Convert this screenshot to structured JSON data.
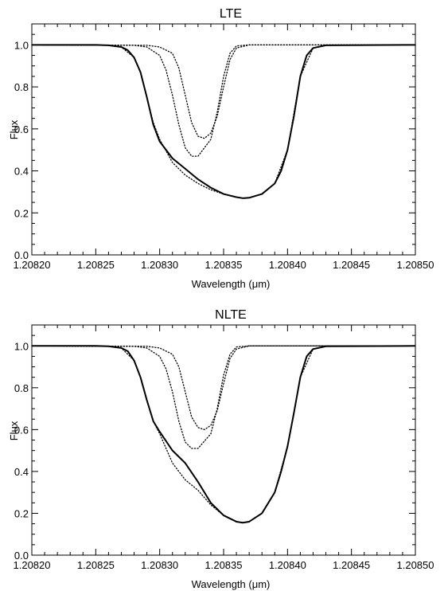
{
  "chart_data": [
    {
      "type": "line",
      "title": "LTE",
      "xlabel": "Wavelength (μm)",
      "ylabel": "Flux",
      "xlim": [
        1.2082,
        1.2085
      ],
      "ylim": [
        0.0,
        1.1
      ],
      "x_ticks": [
        "1.20820",
        "1.20825",
        "1.20830",
        "1.20835",
        "1.20840",
        "1.20845",
        "1.20850"
      ],
      "y_ticks": [
        "0.0",
        "0.2",
        "0.4",
        "0.6",
        "0.8",
        "1.0"
      ],
      "grid": false,
      "series": [
        {
          "style": "solid",
          "x": [
            1.2082,
            1.20825,
            1.20826,
            1.20827,
            1.208275,
            1.20828,
            1.208285,
            1.20829,
            1.208295,
            1.2083,
            1.20831,
            1.20832,
            1.20833,
            1.20834,
            1.20835,
            1.20836,
            1.208365,
            1.20837,
            1.20838,
            1.20839,
            1.208395,
            1.2084,
            1.208405,
            1.20841,
            1.208415,
            1.20842,
            1.20843,
            1.2085
          ],
          "y": [
            1.0,
            1.0,
            0.998,
            0.99,
            0.975,
            0.94,
            0.87,
            0.75,
            0.62,
            0.54,
            0.46,
            0.41,
            0.36,
            0.32,
            0.29,
            0.275,
            0.27,
            0.272,
            0.29,
            0.34,
            0.4,
            0.5,
            0.66,
            0.85,
            0.95,
            0.985,
            0.998,
            1.0
          ]
        },
        {
          "style": "dotted",
          "x": [
            1.2082,
            1.20826,
            1.20827,
            1.20828,
            1.208285,
            1.20829,
            1.208295,
            1.2083,
            1.20831,
            1.20832,
            1.20833,
            1.20834,
            1.20835,
            1.20836,
            1.208365,
            1.20837,
            1.20838,
            1.20839,
            1.2084,
            1.20841,
            1.20842,
            1.20843,
            1.2085
          ],
          "y": [
            1.0,
            0.998,
            0.99,
            0.94,
            0.87,
            0.75,
            0.63,
            0.55,
            0.44,
            0.38,
            0.34,
            0.31,
            0.29,
            0.275,
            0.27,
            0.272,
            0.29,
            0.34,
            0.5,
            0.85,
            0.985,
            0.998,
            1.0
          ]
        },
        {
          "style": "dotted",
          "x": [
            1.2082,
            1.20828,
            1.20829,
            1.2083,
            1.208305,
            1.20831,
            1.208315,
            1.20832,
            1.208325,
            1.20833,
            1.20834,
            1.208345,
            1.20835,
            1.208355,
            1.20836,
            1.20837,
            1.2085
          ],
          "y": [
            1.0,
            0.998,
            0.99,
            0.95,
            0.88,
            0.76,
            0.62,
            0.51,
            0.47,
            0.47,
            0.55,
            0.68,
            0.85,
            0.96,
            0.995,
            1.0,
            1.0
          ]
        },
        {
          "style": "dotted",
          "x": [
            1.2082,
            1.20829,
            1.2083,
            1.20831,
            1.208315,
            1.20832,
            1.208325,
            1.20833,
            1.208335,
            1.20834,
            1.208345,
            1.20835,
            1.208355,
            1.20836,
            1.20837,
            1.2085
          ],
          "y": [
            1.0,
            0.998,
            0.99,
            0.96,
            0.89,
            0.76,
            0.63,
            0.565,
            0.555,
            0.58,
            0.66,
            0.8,
            0.93,
            0.985,
            1.0,
            1.0
          ]
        }
      ]
    },
    {
      "type": "line",
      "title": "NLTE",
      "xlabel": "Wavelength (μm)",
      "ylabel": "Flux",
      "xlim": [
        1.2082,
        1.2085
      ],
      "ylim": [
        0.0,
        1.1
      ],
      "x_ticks": [
        "1.20820",
        "1.20825",
        "1.20830",
        "1.20835",
        "1.20840",
        "1.20845",
        "1.20850"
      ],
      "y_ticks": [
        "0.0",
        "0.2",
        "0.4",
        "0.6",
        "0.8",
        "1.0"
      ],
      "grid": false,
      "series": [
        {
          "style": "solid",
          "x": [
            1.2082,
            1.20825,
            1.20826,
            1.20827,
            1.208275,
            1.20828,
            1.208285,
            1.20829,
            1.208295,
            1.2083,
            1.20831,
            1.20832,
            1.20833,
            1.20834,
            1.20835,
            1.20836,
            1.208365,
            1.20837,
            1.20838,
            1.20839,
            1.208395,
            1.2084,
            1.208405,
            1.20841,
            1.208415,
            1.20842,
            1.20843,
            1.2085
          ],
          "y": [
            1.0,
            1.0,
            0.998,
            0.99,
            0.975,
            0.93,
            0.85,
            0.74,
            0.64,
            0.59,
            0.5,
            0.44,
            0.35,
            0.25,
            0.19,
            0.16,
            0.155,
            0.16,
            0.2,
            0.3,
            0.4,
            0.52,
            0.68,
            0.85,
            0.95,
            0.985,
            0.998,
            1.0
          ]
        },
        {
          "style": "dotted",
          "x": [
            1.2082,
            1.20826,
            1.20827,
            1.20828,
            1.208285,
            1.20829,
            1.208295,
            1.2083,
            1.20831,
            1.20832,
            1.20833,
            1.20834,
            1.20835,
            1.20836,
            1.208365,
            1.20837,
            1.20838,
            1.20839,
            1.2084,
            1.20841,
            1.20842,
            1.20843,
            1.2085
          ],
          "y": [
            1.0,
            0.998,
            0.99,
            0.93,
            0.85,
            0.74,
            0.64,
            0.58,
            0.44,
            0.36,
            0.31,
            0.24,
            0.19,
            0.16,
            0.155,
            0.16,
            0.2,
            0.3,
            0.52,
            0.85,
            0.985,
            0.998,
            1.0
          ]
        },
        {
          "style": "dotted",
          "x": [
            1.2082,
            1.20828,
            1.20829,
            1.2083,
            1.208305,
            1.20831,
            1.208315,
            1.20832,
            1.208325,
            1.20833,
            1.20834,
            1.208345,
            1.20835,
            1.208355,
            1.20836,
            1.20837,
            1.2085
          ],
          "y": [
            1.0,
            0.998,
            0.99,
            0.95,
            0.89,
            0.78,
            0.64,
            0.54,
            0.51,
            0.51,
            0.58,
            0.7,
            0.86,
            0.96,
            0.995,
            1.0,
            1.0
          ]
        },
        {
          "style": "dotted",
          "x": [
            1.2082,
            1.20829,
            1.2083,
            1.20831,
            1.208315,
            1.20832,
            1.208325,
            1.20833,
            1.208335,
            1.20834,
            1.208345,
            1.20835,
            1.208355,
            1.20836,
            1.20837,
            1.2085
          ],
          "y": [
            1.0,
            0.998,
            0.99,
            0.96,
            0.9,
            0.78,
            0.66,
            0.61,
            0.6,
            0.62,
            0.69,
            0.82,
            0.94,
            0.985,
            1.0,
            1.0
          ]
        }
      ]
    }
  ]
}
